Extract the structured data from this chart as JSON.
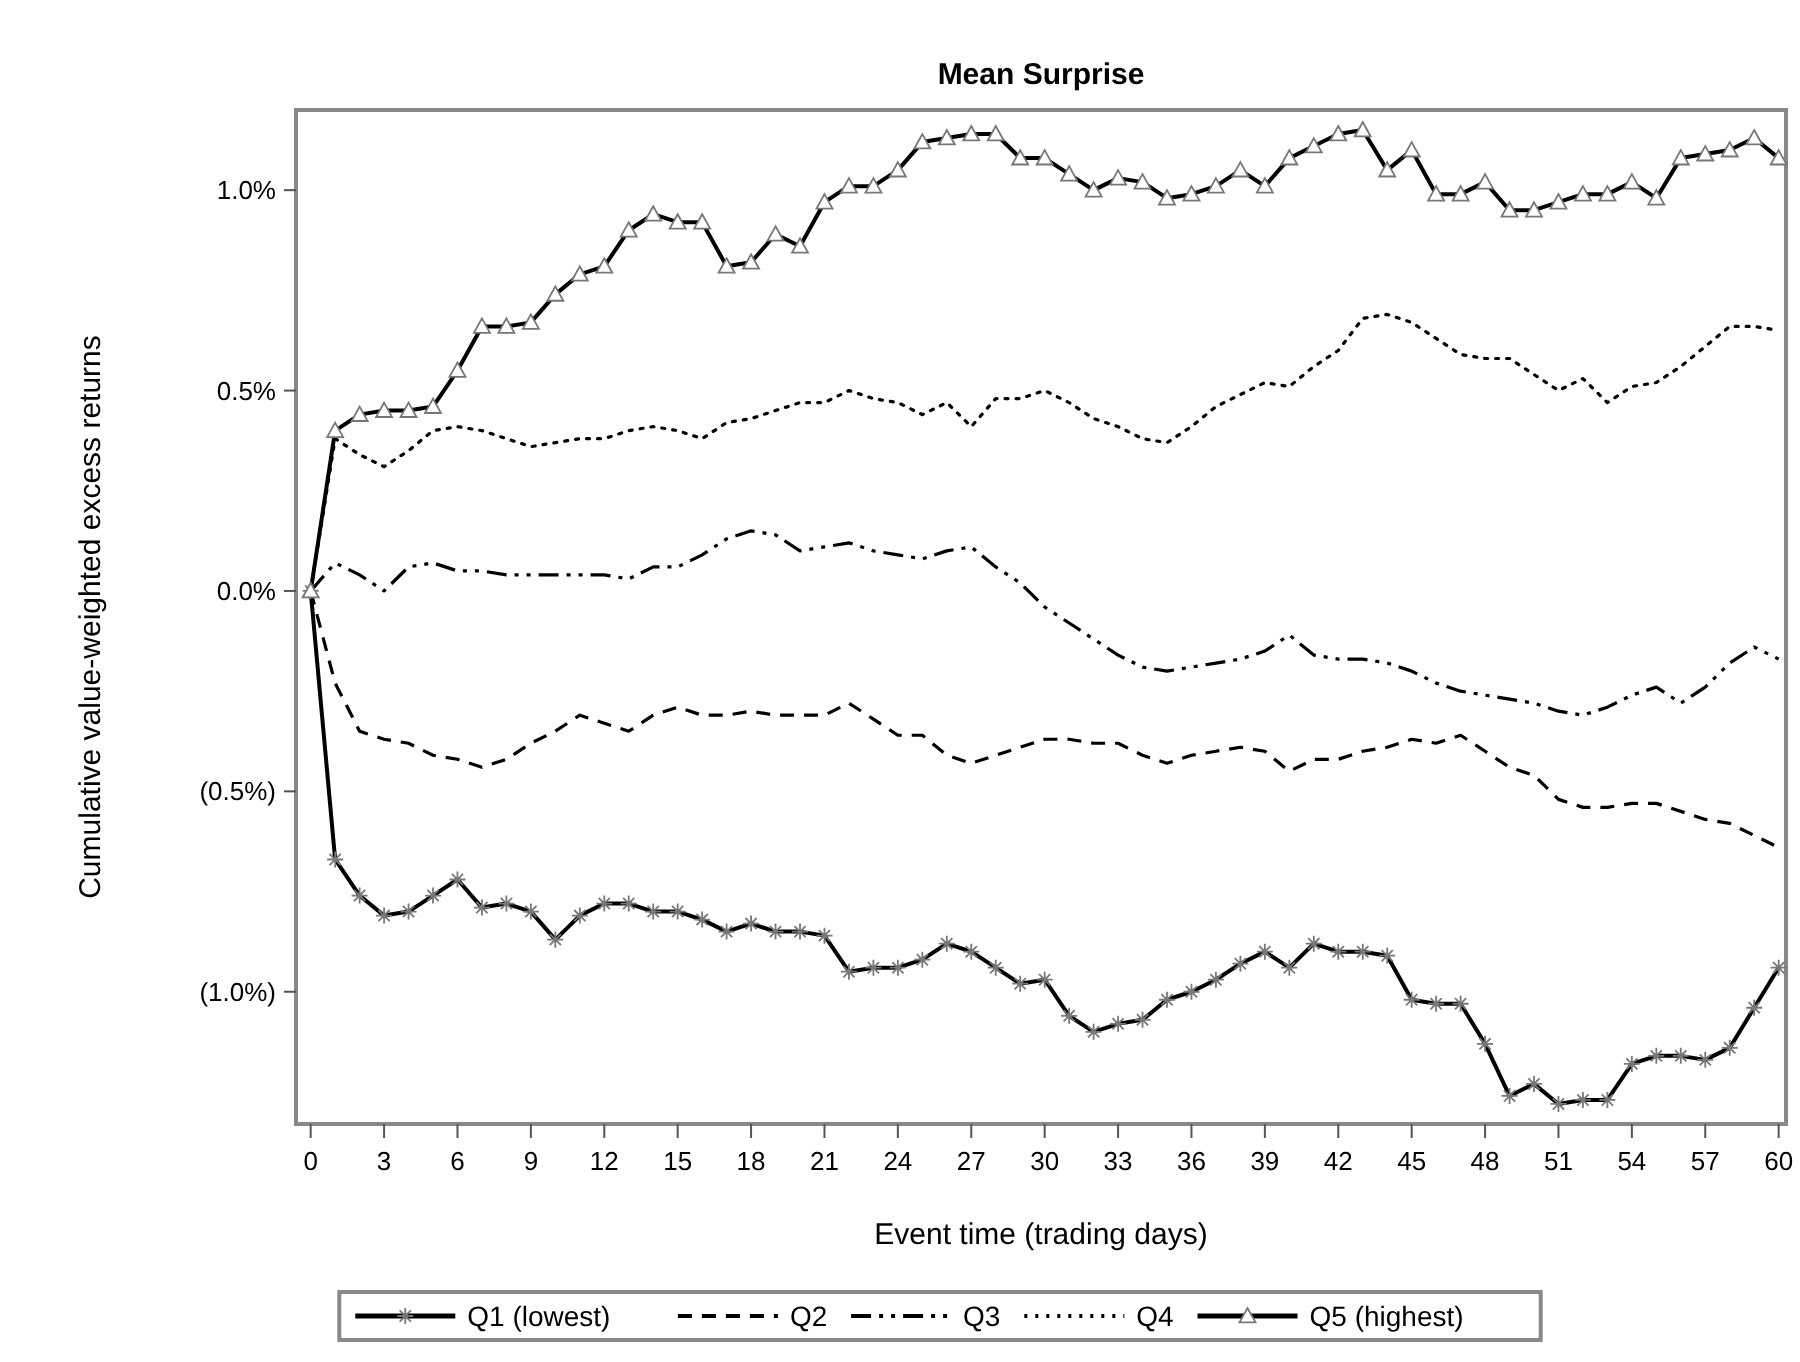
{
  "chart_data": {
    "type": "line",
    "title": "Mean Surprise",
    "xlabel": "Event time (trading days)",
    "ylabel": "Cumulative value-weighted excess returns",
    "x": [
      0,
      1,
      2,
      3,
      4,
      5,
      6,
      7,
      8,
      9,
      10,
      11,
      12,
      13,
      14,
      15,
      16,
      17,
      18,
      19,
      20,
      21,
      22,
      23,
      24,
      25,
      26,
      27,
      28,
      29,
      30,
      31,
      32,
      33,
      34,
      35,
      36,
      37,
      38,
      39,
      40,
      41,
      42,
      43,
      44,
      45,
      46,
      47,
      48,
      49,
      50,
      51,
      52,
      53,
      54,
      55,
      56,
      57,
      58,
      59,
      60
    ],
    "xlim": [
      -0.6,
      60.3
    ],
    "xticks": [
      0,
      3,
      6,
      9,
      12,
      15,
      18,
      21,
      24,
      27,
      30,
      33,
      36,
      39,
      42,
      45,
      48,
      51,
      54,
      57,
      60
    ],
    "ylim": [
      -1.33,
      1.2
    ],
    "yticks": [
      {
        "value": -1,
        "label": "(1.0%)"
      },
      {
        "value": -0.5,
        "label": "(0.5%)"
      },
      {
        "value": 0,
        "label": "0.0%"
      },
      {
        "value": 0.5,
        "label": "0.5%"
      },
      {
        "value": 1,
        "label": "1.0%"
      }
    ],
    "legend": "bottom",
    "grid": false,
    "series": [
      {
        "name": "Q1 (lowest)",
        "color": "#000000",
        "marker": "cross",
        "line_style": "solid",
        "values": [
          0,
          -0.67,
          -0.76,
          -0.81,
          -0.8,
          -0.76,
          -0.72,
          -0.79,
          -0.78,
          -0.8,
          -0.87,
          -0.81,
          -0.78,
          -0.78,
          -0.8,
          -0.8,
          -0.82,
          -0.85,
          -0.83,
          -0.85,
          -0.85,
          -0.86,
          -0.95,
          -0.94,
          -0.94,
          -0.92,
          -0.88,
          -0.9,
          -0.94,
          -0.98,
          -0.97,
          -1.06,
          -1.1,
          -1.08,
          -1.07,
          -1.02,
          -1,
          -0.97,
          -0.93,
          -0.9,
          -0.94,
          -0.88,
          -0.9,
          -0.9,
          -0.91,
          -1.02,
          -1.03,
          -1.03,
          -1.13,
          -1.26,
          -1.23,
          -1.28,
          -1.27,
          -1.27,
          -1.18,
          -1.16,
          -1.16,
          -1.17,
          -1.14,
          -1.04,
          -0.94
        ]
      },
      {
        "name": "Q2",
        "color": "#000000",
        "marker": "none",
        "line_style": "dashed",
        "values": [
          0,
          -0.23,
          -0.35,
          -0.37,
          -0.38,
          -0.41,
          -0.42,
          -0.44,
          -0.42,
          -0.38,
          -0.35,
          -0.31,
          -0.33,
          -0.35,
          -0.31,
          -0.29,
          -0.31,
          -0.31,
          -0.3,
          -0.31,
          -0.31,
          -0.31,
          -0.28,
          -0.32,
          -0.36,
          -0.36,
          -0.41,
          -0.43,
          -0.41,
          -0.39,
          -0.37,
          -0.37,
          -0.38,
          -0.38,
          -0.41,
          -0.43,
          -0.41,
          -0.4,
          -0.39,
          -0.4,
          -0.45,
          -0.42,
          -0.42,
          -0.4,
          -0.39,
          -0.37,
          -0.38,
          -0.36,
          -0.4,
          -0.44,
          -0.46,
          -0.52,
          -0.54,
          -0.54,
          -0.53,
          -0.53,
          -0.55,
          -0.57,
          -0.58,
          -0.61,
          -0.64
        ]
      },
      {
        "name": "Q3",
        "color": "#000000",
        "marker": "none",
        "line_style": "dashdot",
        "values": [
          0,
          0.07,
          0.04,
          0,
          0.06,
          0.07,
          0.05,
          0.05,
          0.04,
          0.04,
          0.04,
          0.04,
          0.04,
          0.03,
          0.06,
          0.06,
          0.09,
          0.13,
          0.15,
          0.14,
          0.1,
          0.11,
          0.12,
          0.1,
          0.09,
          0.08,
          0.1,
          0.11,
          0.06,
          0.02,
          -0.04,
          -0.08,
          -0.12,
          -0.16,
          -0.19,
          -0.2,
          -0.19,
          -0.18,
          -0.17,
          -0.15,
          -0.11,
          -0.16,
          -0.17,
          -0.17,
          -0.18,
          -0.2,
          -0.23,
          -0.25,
          -0.26,
          -0.27,
          -0.28,
          -0.3,
          -0.31,
          -0.29,
          -0.26,
          -0.24,
          -0.28,
          -0.24,
          -0.18,
          -0.14,
          -0.17
        ]
      },
      {
        "name": "Q4",
        "color": "#000000",
        "marker": "none",
        "line_style": "dotted",
        "values": [
          0,
          0.38,
          0.34,
          0.31,
          0.35,
          0.4,
          0.41,
          0.4,
          0.38,
          0.36,
          0.37,
          0.38,
          0.38,
          0.4,
          0.41,
          0.4,
          0.38,
          0.42,
          0.43,
          0.45,
          0.47,
          0.47,
          0.5,
          0.48,
          0.47,
          0.44,
          0.47,
          0.41,
          0.48,
          0.48,
          0.5,
          0.47,
          0.43,
          0.41,
          0.38,
          0.37,
          0.41,
          0.46,
          0.49,
          0.52,
          0.51,
          0.56,
          0.6,
          0.68,
          0.69,
          0.67,
          0.63,
          0.59,
          0.58,
          0.58,
          0.54,
          0.5,
          0.53,
          0.47,
          0.51,
          0.52,
          0.56,
          0.61,
          0.66,
          0.66,
          0.65
        ]
      },
      {
        "name": "Q5 (highest)",
        "color": "#000000",
        "marker": "triangle",
        "line_style": "solid",
        "values": [
          0,
          0.4,
          0.44,
          0.45,
          0.45,
          0.46,
          0.55,
          0.66,
          0.66,
          0.67,
          0.74,
          0.79,
          0.81,
          0.9,
          0.94,
          0.92,
          0.92,
          0.81,
          0.82,
          0.89,
          0.86,
          0.97,
          1.01,
          1.01,
          1.05,
          1.12,
          1.13,
          1.14,
          1.14,
          1.08,
          1.08,
          1.04,
          1,
          1.03,
          1.02,
          0.98,
          0.99,
          1.01,
          1.05,
          1.01,
          1.08,
          1.11,
          1.14,
          1.15,
          1.05,
          1.1,
          0.99,
          0.99,
          1.02,
          0.95,
          0.95,
          0.97,
          0.99,
          0.99,
          1.02,
          0.98,
          1.08,
          1.09,
          1.1,
          1.13,
          1.08
        ]
      }
    ]
  }
}
